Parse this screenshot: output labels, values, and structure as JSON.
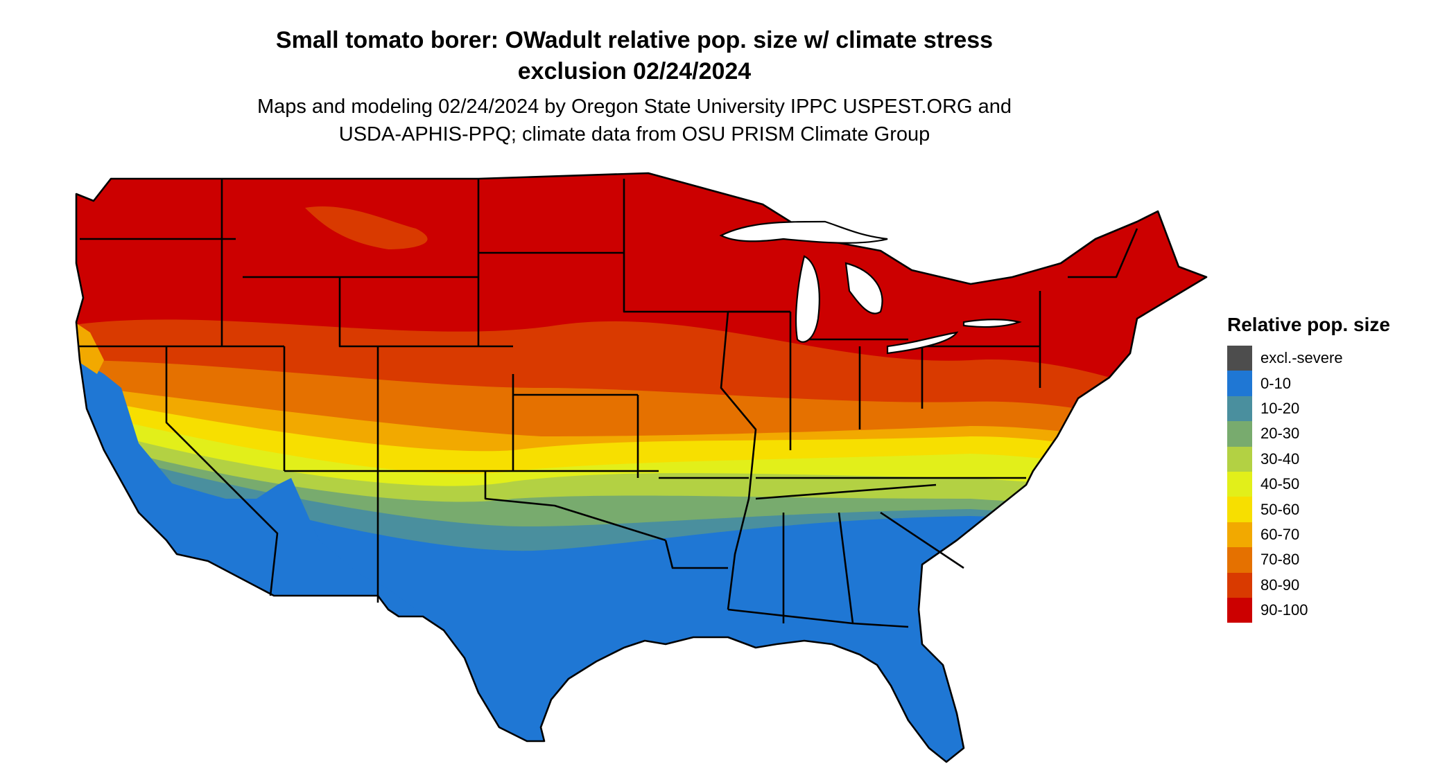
{
  "title_line1": "Small tomato borer: OWadult relative pop. size w/ climate stress",
  "title_line2": "exclusion 02/24/2024",
  "subtitle_line1": "Maps and modeling 02/24/2024 by Oregon State University IPPC USPEST.ORG and",
  "subtitle_line2": "USDA-APHIS-PPQ; climate data from OSU PRISM Climate Group",
  "legend": {
    "title": "Relative pop. size",
    "items": [
      {
        "label": "excl.-severe",
        "color": "#4d4d4d"
      },
      {
        "label": "0-10",
        "color": "#1f77d4"
      },
      {
        "label": "10-20",
        "color": "#4a8f9e"
      },
      {
        "label": "20-30",
        "color": "#78ab6e"
      },
      {
        "label": "30-40",
        "color": "#b3d143"
      },
      {
        "label": "40-50",
        "color": "#e2ef1a"
      },
      {
        "label": "50-60",
        "color": "#f7df00"
      },
      {
        "label": "60-70",
        "color": "#f2a900"
      },
      {
        "label": "70-80",
        "color": "#e57100"
      },
      {
        "label": "80-90",
        "color": "#d93a00"
      },
      {
        "label": "90-100",
        "color": "#cc0000"
      }
    ]
  }
}
